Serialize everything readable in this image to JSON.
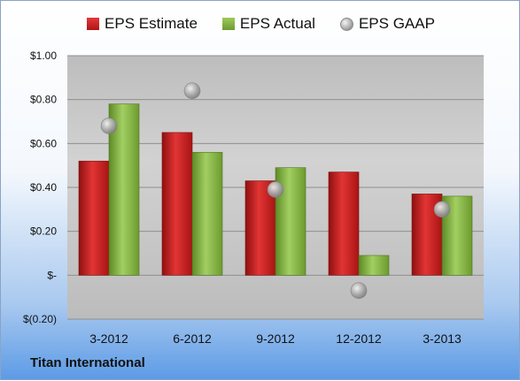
{
  "company": "Titan International",
  "chart_data": {
    "type": "bar",
    "categories": [
      "3-2012",
      "6-2012",
      "9-2012",
      "12-2012",
      "3-2013"
    ],
    "series": [
      {
        "name": "EPS Estimate",
        "values": [
          0.52,
          0.65,
          0.43,
          0.47,
          0.37
        ],
        "color": "#c62020"
      },
      {
        "name": "EPS Actual",
        "values": [
          0.78,
          0.56,
          0.49,
          0.09,
          0.36
        ],
        "color": "#82b040"
      },
      {
        "name": "EPS GAAP",
        "values": [
          0.68,
          0.84,
          0.39,
          -0.07,
          0.3
        ],
        "color": "#a8a8a8",
        "kind": "marker"
      }
    ],
    "ylim": [
      -0.2,
      1.0
    ],
    "yticks": [
      -0.2,
      0,
      0.2,
      0.4,
      0.6,
      0.8,
      1.0
    ],
    "ytick_labels": [
      "$(0.20)",
      "$-",
      "$0.20",
      "$0.40",
      "$0.60",
      "$0.80",
      "$1.00"
    ],
    "grid": true,
    "legend": "top"
  }
}
